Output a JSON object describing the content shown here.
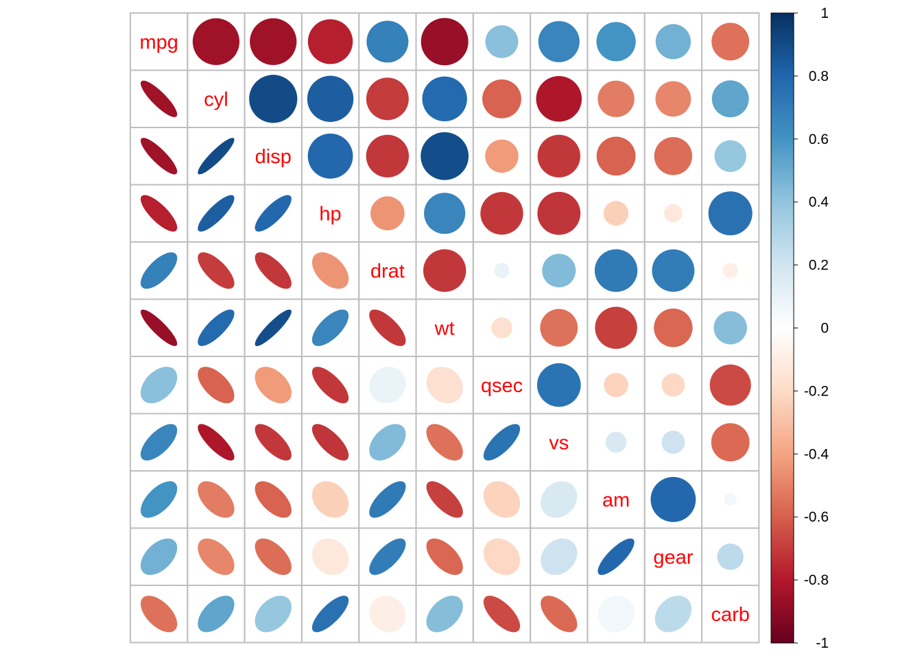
{
  "chart_data": {
    "type": "heatmap",
    "variables": [
      "mpg",
      "cyl",
      "disp",
      "hp",
      "drat",
      "wt",
      "qsec",
      "vs",
      "am",
      "gear",
      "carb"
    ],
    "matrix": [
      [
        1.0,
        -0.85,
        -0.85,
        -0.78,
        0.68,
        -0.87,
        0.42,
        0.66,
        0.6,
        0.48,
        -0.55
      ],
      [
        -0.85,
        1.0,
        0.9,
        0.83,
        -0.7,
        0.78,
        -0.59,
        -0.81,
        -0.52,
        -0.49,
        0.53
      ],
      [
        -0.85,
        0.9,
        1.0,
        0.79,
        -0.71,
        0.89,
        -0.43,
        -0.71,
        -0.59,
        -0.56,
        0.39
      ],
      [
        -0.78,
        0.83,
        0.79,
        1.0,
        -0.45,
        0.66,
        -0.71,
        -0.72,
        -0.24,
        -0.13,
        0.75
      ],
      [
        0.68,
        -0.7,
        -0.71,
        -0.45,
        1.0,
        -0.71,
        0.09,
        0.44,
        0.71,
        0.7,
        -0.09
      ],
      [
        -0.87,
        0.78,
        0.89,
        0.66,
        -0.71,
        1.0,
        -0.17,
        -0.55,
        -0.69,
        -0.58,
        0.43
      ],
      [
        0.42,
        -0.59,
        -0.43,
        -0.71,
        0.09,
        -0.17,
        1.0,
        0.74,
        -0.23,
        -0.21,
        -0.66
      ],
      [
        0.66,
        -0.81,
        -0.71,
        -0.72,
        0.44,
        -0.55,
        0.74,
        1.0,
        0.17,
        0.21,
        -0.57
      ],
      [
        0.6,
        -0.52,
        -0.59,
        -0.24,
        0.71,
        -0.69,
        -0.23,
        0.17,
        1.0,
        0.79,
        0.06
      ],
      [
        0.48,
        -0.49,
        -0.56,
        -0.13,
        0.7,
        -0.58,
        -0.21,
        0.21,
        0.79,
        1.0,
        0.27
      ],
      [
        -0.55,
        0.53,
        0.39,
        0.75,
        -0.09,
        0.43,
        -0.66,
        -0.57,
        0.06,
        0.27,
        1.0
      ]
    ],
    "upper_method": "circle",
    "lower_method": "ellipse",
    "colorbar": {
      "ticks": [
        "1",
        "0.8",
        "0.6",
        "0.4",
        "0.2",
        "0",
        "-0.2",
        "-0.4",
        "-0.6",
        "-0.8",
        "-1"
      ],
      "range": [
        -1,
        1
      ],
      "position": "right"
    },
    "colors": {
      "negative_end": "#67001F",
      "mid": "#FFFFFF",
      "positive_end": "#053061",
      "label_color": "#FF0000",
      "grid_color": "#BEBEBE"
    }
  }
}
